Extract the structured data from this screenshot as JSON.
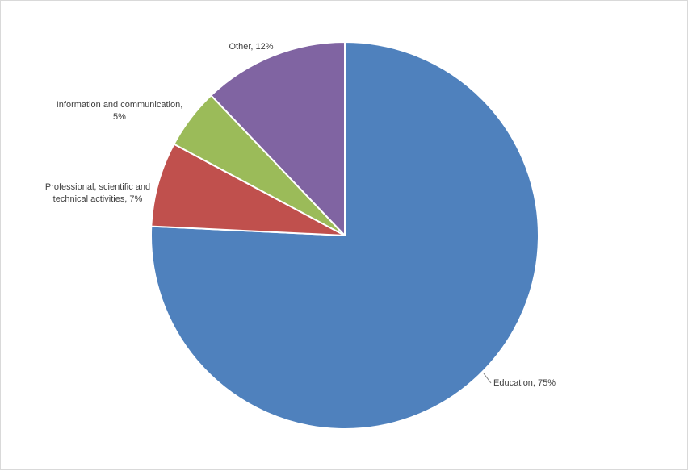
{
  "chart_data": {
    "type": "pie",
    "title": "",
    "start_angle_deg": 0,
    "direction": "clockwise",
    "slices": [
      {
        "name": "Education",
        "value": 75,
        "color": "#4f81bd",
        "label_lines": [
          "Education, 75%"
        ]
      },
      {
        "name": "Professional, scientific and technical activities",
        "value": 7,
        "color": "#c0504d",
        "label_lines": [
          "Professional, scientific and",
          "technical activities, 7%"
        ]
      },
      {
        "name": "Information and communication",
        "value": 5,
        "color": "#9bbb59",
        "label_lines": [
          "Information and communication,",
          "5%"
        ]
      },
      {
        "name": "Other",
        "value": 12,
        "color": "#8064a2",
        "label_lines": [
          "Other, 12%"
        ]
      }
    ],
    "legend": "none"
  }
}
